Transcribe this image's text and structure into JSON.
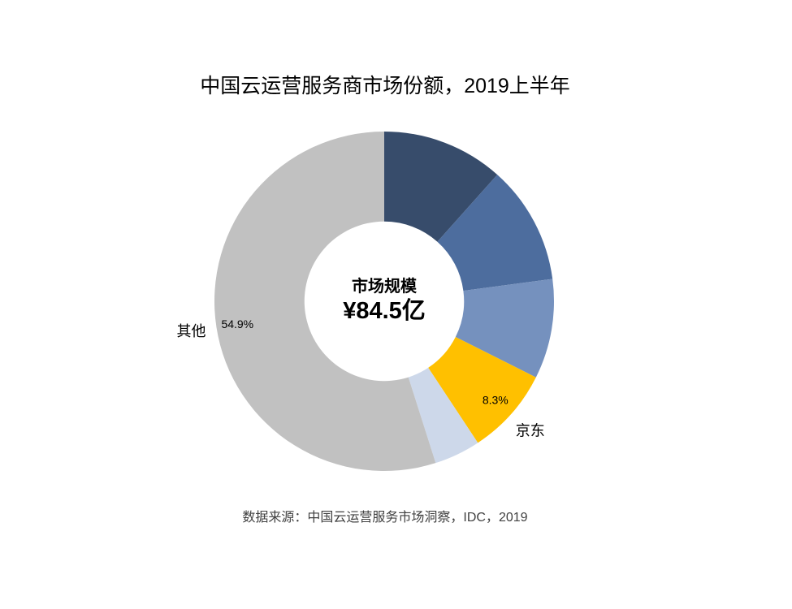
{
  "chart_data": {
    "type": "pie",
    "subtype": "donut",
    "title": "中国云运营服务商市场份额，2019上半年",
    "center_label": {
      "title": "市场规模",
      "value": "¥84.5亿"
    },
    "source": "数据来源：中国云运营服务市场洞察，IDC，2019",
    "start_angle_deg": 0,
    "direction": "clockwise",
    "inner_radius_ratio": 0.47,
    "legend": "none",
    "slices": [
      {
        "name": "",
        "value": 11.6,
        "color": "#374C6B",
        "pct_label": ""
      },
      {
        "name": "",
        "value": 11.3,
        "color": "#4D6D9E",
        "pct_label": ""
      },
      {
        "name": "",
        "value": 9.5,
        "color": "#7591BE",
        "pct_label": ""
      },
      {
        "name": "京东",
        "value": 8.3,
        "color": "#FFC000",
        "pct_label": "8.3%"
      },
      {
        "name": "",
        "value": 4.4,
        "color": "#CDD8EA",
        "pct_label": ""
      },
      {
        "name": "其他",
        "value": 54.9,
        "color": "#C1C1C1",
        "pct_label": "54.9%"
      }
    ]
  }
}
